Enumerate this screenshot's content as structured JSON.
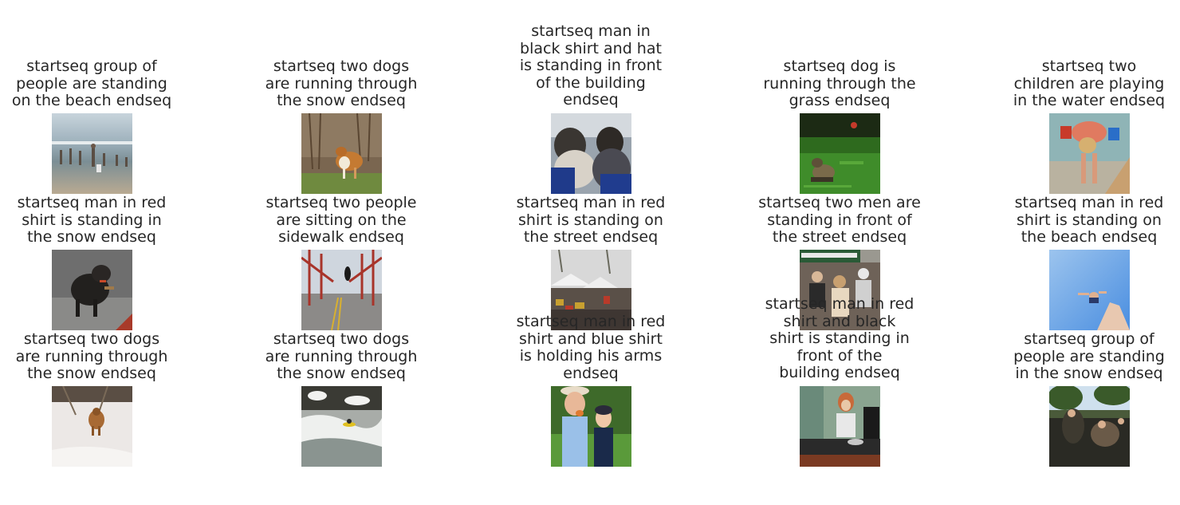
{
  "captions": [
    "startseq group of\npeople are standing\non the beach endseq",
    "startseq two dogs\nare running through\nthe snow endseq",
    "startseq man in\nblack shirt and hat\nis standing in front\nof the building\nendseq",
    "startseq dog is\nrunning through the\ngrass endseq",
    "startseq two\nchildren are playing\nin the water endseq",
    "startseq man in red\nshirt is standing in\nthe snow endseq",
    "startseq two people\nare sitting on the\nsidewalk endseq",
    "startseq man in red\nshirt is standing on\nthe street endseq",
    "startseq two men are\nstanding in front of\nthe street endseq",
    "startseq man in red\nshirt is standing on\nthe beach endseq",
    "startseq two dogs\nare running through\nthe snow endseq",
    "startseq two dogs\nare running through\nthe snow endseq",
    "startseq man in red\nshirt and blue shirt\nis holding his arms\nendseq",
    "startseq man in red\nshirt and black\nshirt is standing in\nfront of the\nbuilding endseq",
    "startseq group of\npeople are standing\nin the snow endseq"
  ],
  "photo_subjects": [
    "beach-people-photo",
    "collie-dog-photo",
    "bus-passengers-photo",
    "terrier-grass-photo",
    "child-water-photo",
    "wet-dog-photo",
    "bridge-runner-photo",
    "street-market-photo",
    "street-crowd-photo",
    "sky-hand-photo",
    "dog-snow-photo",
    "kayak-rapids-photo",
    "children-eating-photo",
    "dj-woman-photo",
    "crowd-park-photo"
  ]
}
